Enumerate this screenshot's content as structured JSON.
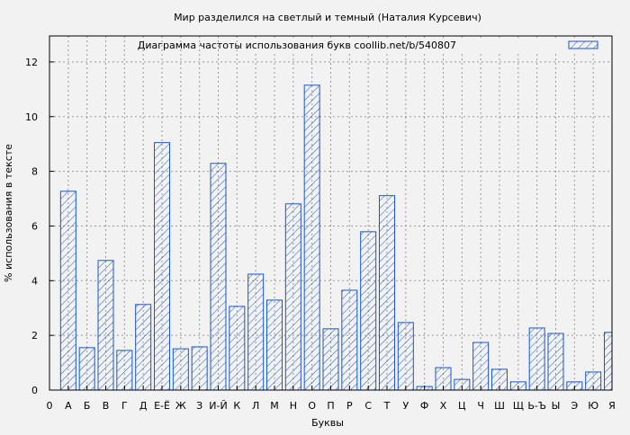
{
  "chart_data": {
    "type": "bar",
    "title": "Мир разделился на светлый и темный (Наталия Курсевич)",
    "xlabel": "Буквы",
    "ylabel": "% использования в тексте",
    "legend": {
      "label": "Диаграмма частоты использования букв  coollib.net/b/540807",
      "placement": "top-right"
    },
    "origin_label": "0",
    "categories": [
      "А",
      "Б",
      "В",
      "Г",
      "Д",
      "Е-Ё",
      "Ж",
      "З",
      "И-Й",
      "К",
      "Л",
      "М",
      "Н",
      "О",
      "П",
      "Р",
      "С",
      "Т",
      "У",
      "Ф",
      "Х",
      "Ц",
      "Ч",
      "Ш",
      "Щ",
      "Ь-Ъ",
      "Ы",
      "Э",
      "Ю",
      "Я"
    ],
    "values": [
      7.27,
      1.55,
      4.74,
      1.45,
      3.13,
      9.05,
      1.51,
      1.58,
      8.29,
      3.06,
      4.24,
      3.29,
      6.81,
      11.15,
      2.24,
      3.65,
      5.79,
      7.11,
      2.47,
      0.13,
      0.82,
      0.39,
      1.74,
      0.76,
      0.3,
      2.27,
      2.07,
      0.3,
      0.66,
      2.11
    ],
    "yticks": [
      0,
      2,
      4,
      6,
      8,
      10,
      12
    ],
    "ylim": [
      0,
      12.95
    ],
    "xlim": [
      0,
      30
    ],
    "grid": true,
    "colors": {
      "bar_stroke": "#1a56c8",
      "background": "#f2f2f2",
      "plot_bg": "#f2f2f2"
    }
  }
}
